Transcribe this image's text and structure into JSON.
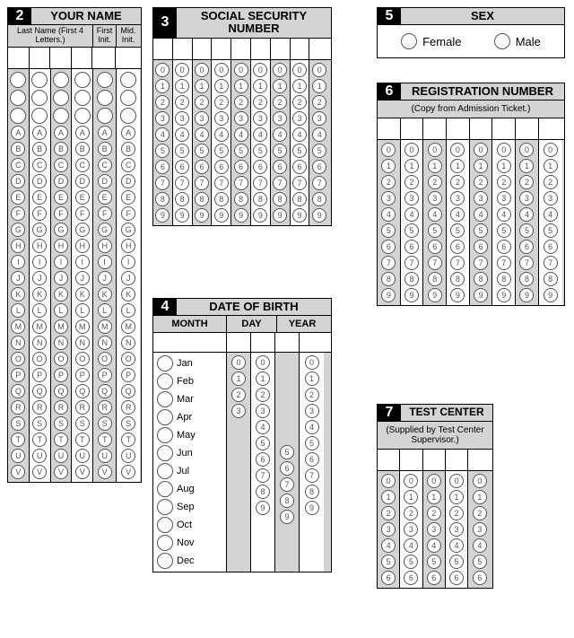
{
  "colors": {
    "shade": "#d4d4d4",
    "border": "#000000",
    "bubble_border": "#555555"
  },
  "sections": {
    "name": {
      "num": "2",
      "title": "YOUR NAME",
      "sub_lastname": "Last Name\n(First 4 Letters.)",
      "sub_first": "First\nInit.",
      "sub_mid": "Mid.\nInit.",
      "letters": [
        "A",
        "B",
        "C",
        "D",
        "E",
        "F",
        "G",
        "H",
        "I",
        "J",
        "K",
        "L",
        "M",
        "N",
        "O",
        "P",
        "Q",
        "R",
        "S",
        "T",
        "U",
        "V"
      ],
      "blank_prelude_count": 3,
      "columns": 6,
      "shaded_cols": [
        0,
        2,
        4
      ]
    },
    "ssn": {
      "num": "3",
      "title": "SOCIAL SECURITY NUMBER",
      "digits": [
        "0",
        "1",
        "2",
        "3",
        "4",
        "5",
        "6",
        "7",
        "8",
        "9"
      ],
      "columns": 9,
      "shaded_cols": [
        0,
        2,
        4,
        6,
        8
      ]
    },
    "dob": {
      "num": "4",
      "title": "DATE OF BIRTH",
      "month_label": "MONTH",
      "day_label": "DAY",
      "year_label": "YEAR",
      "months": [
        "Jan",
        "Feb",
        "Mar",
        "Apr",
        "May",
        "Jun",
        "Jul",
        "Aug",
        "Sep",
        "Oct",
        "Nov",
        "Dec"
      ],
      "day_tens": [
        "0",
        "1",
        "2",
        "3"
      ],
      "day_ones": [
        "0",
        "1",
        "2",
        "3",
        "4",
        "5",
        "6",
        "7",
        "8",
        "9"
      ],
      "year_tens": [
        "5",
        "6",
        "7",
        "8",
        "9"
      ],
      "year_tens_offset": 5,
      "year_ones": [
        "0",
        "1",
        "2",
        "3",
        "4",
        "5",
        "6",
        "7",
        "8",
        "9"
      ]
    },
    "sex": {
      "num": "5",
      "title": "SEX",
      "options": [
        "Female",
        "Male"
      ]
    },
    "reg": {
      "num": "6",
      "title": "REGISTRATION NUMBER",
      "note": "(Copy from Admission Ticket.)",
      "digits": [
        "0",
        "1",
        "2",
        "3",
        "4",
        "5",
        "6",
        "7",
        "8",
        "9"
      ],
      "columns": 8,
      "shaded_cols": [
        0,
        2,
        4,
        6
      ]
    },
    "center": {
      "num": "7",
      "title": "TEST CENTER",
      "note": "(Supplied by Test Center Supervisor.)",
      "digits": [
        "0",
        "1",
        "2",
        "3",
        "4",
        "5",
        "6"
      ],
      "columns": 5,
      "shaded_cols": [
        0,
        2,
        4
      ]
    }
  }
}
